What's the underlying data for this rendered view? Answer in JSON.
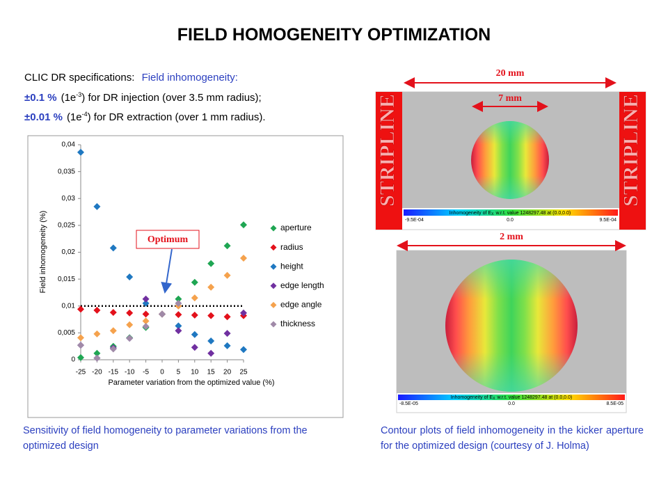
{
  "title": "FIELD HOMOGENEITY OPTIMIZATION",
  "specs": {
    "label": "CLIC DR specifications:",
    "field": "Field inhomogeneity:",
    "lines": [
      {
        "tol": "±0.1 %",
        "pre": "(1e",
        "exp": "-3",
        "post": ") for DR injection (over 3.5 mm radius);"
      },
      {
        "tol": "±0.01 %",
        "pre": "(1e",
        "exp": "-4",
        "post": ") for DR extraction (over 1 mm radius)."
      }
    ]
  },
  "chart_data": {
    "type": "scatter",
    "x_label": "Parameter variation from the optimized value (%)",
    "y_label": "Field inhomogeneity (%)",
    "annotation": "Optimum",
    "x": [
      -25,
      -20,
      -15,
      -10,
      -5,
      0,
      5,
      10,
      15,
      20,
      25
    ],
    "xlim": [
      -25,
      25
    ],
    "xticks": [
      -25,
      -20,
      -15,
      -10,
      -5,
      0,
      5,
      10,
      15,
      20,
      25
    ],
    "ylim": [
      0,
      0.04
    ],
    "yticks": [
      0,
      {
        "value": 0.005,
        "label": "0,005"
      },
      {
        "value": 0.01,
        "label": "0,01"
      },
      {
        "value": 0.015,
        "label": "0,015"
      },
      {
        "value": 0.02,
        "label": "0,02"
      },
      {
        "value": 0.025,
        "label": "0,025"
      },
      {
        "value": 0.03,
        "label": "0,03"
      },
      {
        "value": 0.035,
        "label": "0,035"
      },
      {
        "value": 0.04,
        "label": "0,04"
      }
    ],
    "hline": 0.01,
    "series": [
      {
        "name": "aperture",
        "color": "#1fa653",
        "values": [
          0.0004,
          0.0012,
          0.0025,
          0.0041,
          0.006,
          0.0085,
          0.0113,
          0.0144,
          0.0179,
          0.0212,
          0.0251
        ]
      },
      {
        "name": "radius",
        "color": "#e3111b",
        "values": [
          0.0094,
          0.0092,
          0.0088,
          0.0087,
          0.0085,
          0.0085,
          0.0084,
          0.0083,
          0.0082,
          0.008,
          0.0082
        ]
      },
      {
        "name": "height",
        "color": "#1f78c1",
        "values": [
          0.0386,
          0.0285,
          0.0208,
          0.0154,
          0.0105,
          0.0085,
          0.0063,
          0.0047,
          0.0035,
          0.0026,
          0.0019
        ]
      },
      {
        "name": "edge length",
        "color": "#7030a0",
        "values": [
          0.0027,
          0.0003,
          0.0022,
          0.004,
          0.0113,
          0.0085,
          0.0054,
          0.0023,
          0.0012,
          0.0049,
          0.0087
        ]
      },
      {
        "name": "edge angle",
        "color": "#f5a24d",
        "values": [
          0.0041,
          0.0048,
          0.0054,
          0.0065,
          0.0072,
          0.0085,
          0.01,
          0.0115,
          0.0135,
          0.0157,
          0.0189
        ]
      },
      {
        "name": "thickness",
        "color": "#a08aa8",
        "values": [
          0.0027,
          0.0003,
          0.002,
          0.004,
          0.0062,
          0.0085,
          0.0105,
          null,
          null,
          null,
          null
        ]
      }
    ]
  },
  "caption_left": "Sensitivity of field homogeneity to parameter variations from the optimized design",
  "caption_right": "Contour plots of field inhomogeneity in the kicker aperture for the optimized design  (courtesy of J. Holma)",
  "contour_top": {
    "width_outer": "20 mm",
    "width_inner": "7 mm",
    "stripline_left": "STRIPLINE",
    "stripline_right": "STRIPLINE",
    "legend_pre": "Inhomogeneity of E",
    "legend_sub": "X",
    "legend_post": "w.r.t. value 1248297.48 at (0.0,0.0)",
    "scale_min": "-9.5E-04",
    "scale_mid": "0.0",
    "scale_max": "9.5E-04"
  },
  "contour_bottom": {
    "width": "2 mm",
    "legend_pre": "Inhomogeneity of E",
    "legend_sub": "X",
    "legend_post": "w.r.t. value 1248297.48 at (0.0,0.0)",
    "scale_min": "-8.5E-05",
    "scale_mid": "0.0",
    "scale_max": "8.5E-05"
  }
}
